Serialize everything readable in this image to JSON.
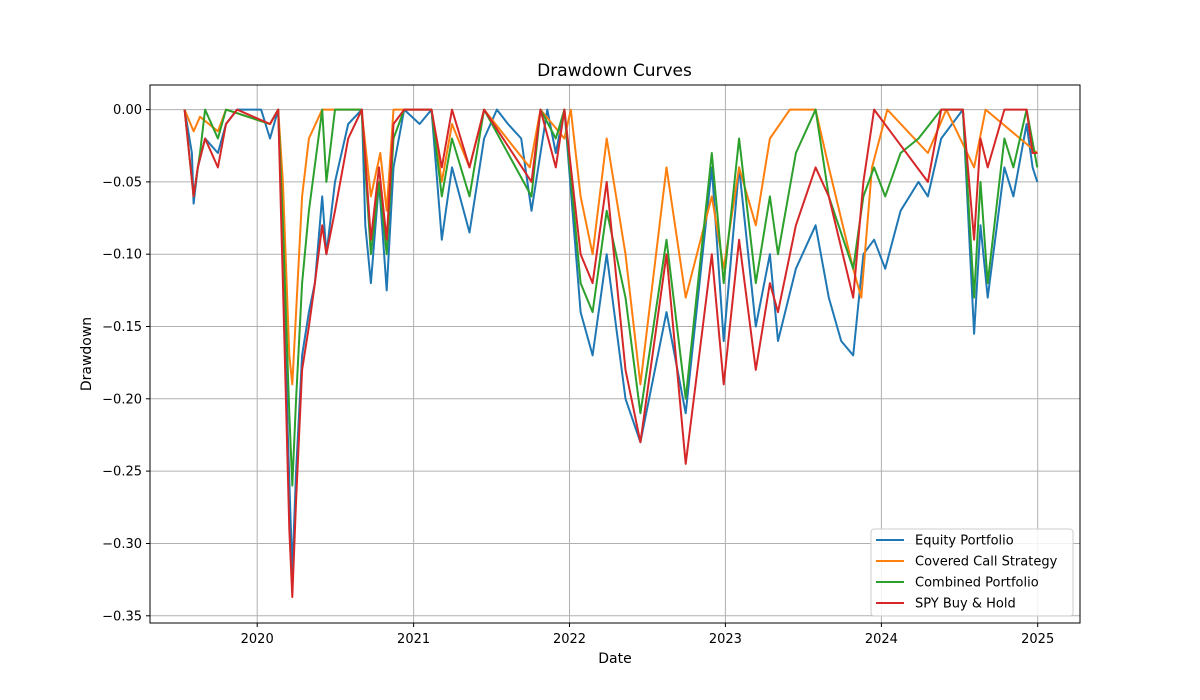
{
  "chart_data": {
    "type": "line",
    "title": "Drawdown Curves",
    "xlabel": "Date",
    "ylabel": "Drawdown",
    "xlim": [
      "2019-04-25",
      "2025-04-10"
    ],
    "ylim": [
      -0.355,
      0.017
    ],
    "x_ticks": [
      {
        "date": "2020-01-01",
        "label": "2020"
      },
      {
        "date": "2021-01-01",
        "label": "2021"
      },
      {
        "date": "2022-01-01",
        "label": "2022"
      },
      {
        "date": "2023-01-01",
        "label": "2023"
      },
      {
        "date": "2024-01-01",
        "label": "2024"
      },
      {
        "date": "2025-01-01",
        "label": "2025"
      }
    ],
    "y_ticks": [
      {
        "value": 0.0,
        "label": "0.00"
      },
      {
        "value": -0.05,
        "label": "−0.05"
      },
      {
        "value": -0.1,
        "label": "−0.10"
      },
      {
        "value": -0.15,
        "label": "−0.15"
      },
      {
        "value": -0.2,
        "label": "−0.20"
      },
      {
        "value": -0.25,
        "label": "−0.25"
      },
      {
        "value": -0.3,
        "label": "−0.30"
      },
      {
        "value": -0.35,
        "label": "−0.35"
      }
    ],
    "grid": true,
    "legend_position": "lower-right",
    "series": [
      {
        "name": "Equity Portfolio",
        "color": "#1f77b4",
        "points": [
          [
            "2019-07-15",
            0.0
          ],
          [
            "2019-08-01",
            -0.03
          ],
          [
            "2019-08-05",
            -0.065
          ],
          [
            "2019-08-15",
            -0.04
          ],
          [
            "2019-09-01",
            -0.02
          ],
          [
            "2019-10-01",
            -0.03
          ],
          [
            "2019-10-20",
            -0.01
          ],
          [
            "2019-11-15",
            0.0
          ],
          [
            "2020-01-10",
            0.0
          ],
          [
            "2020-01-31",
            -0.02
          ],
          [
            "2020-02-19",
            0.0
          ],
          [
            "2020-02-25",
            -0.05
          ],
          [
            "2020-03-05",
            -0.13
          ],
          [
            "2020-03-12",
            -0.22
          ],
          [
            "2020-03-23",
            -0.32
          ],
          [
            "2020-04-01",
            -0.25
          ],
          [
            "2020-04-15",
            -0.17
          ],
          [
            "2020-05-01",
            -0.14
          ],
          [
            "2020-05-15",
            -0.12
          ],
          [
            "2020-06-01",
            -0.06
          ],
          [
            "2020-06-11",
            -0.1
          ],
          [
            "2020-07-01",
            -0.05
          ],
          [
            "2020-08-01",
            -0.01
          ],
          [
            "2020-09-02",
            0.0
          ],
          [
            "2020-09-10",
            -0.08
          ],
          [
            "2020-09-23",
            -0.12
          ],
          [
            "2020-10-12",
            -0.05
          ],
          [
            "2020-10-30",
            -0.125
          ],
          [
            "2020-11-15",
            -0.04
          ],
          [
            "2020-12-10",
            0.0
          ],
          [
            "2021-01-15",
            -0.01
          ],
          [
            "2021-02-12",
            0.0
          ],
          [
            "2021-03-08",
            -0.09
          ],
          [
            "2021-04-01",
            -0.04
          ],
          [
            "2021-05-12",
            -0.085
          ],
          [
            "2021-06-15",
            -0.02
          ],
          [
            "2021-07-15",
            0.0
          ],
          [
            "2021-08-10",
            -0.01
          ],
          [
            "2021-09-10",
            -0.02
          ],
          [
            "2021-10-04",
            -0.07
          ],
          [
            "2021-11-10",
            0.0
          ],
          [
            "2021-11-30",
            -0.03
          ],
          [
            "2021-12-20",
            0.0
          ],
          [
            "2022-01-27",
            -0.14
          ],
          [
            "2022-02-24",
            -0.17
          ],
          [
            "2022-03-29",
            -0.1
          ],
          [
            "2022-05-12",
            -0.2
          ],
          [
            "2022-06-16",
            -0.23
          ],
          [
            "2022-08-16",
            -0.14
          ],
          [
            "2022-09-30",
            -0.21
          ],
          [
            "2022-11-30",
            -0.04
          ],
          [
            "2022-12-28",
            -0.16
          ],
          [
            "2023-02-02",
            -0.04
          ],
          [
            "2023-03-13",
            -0.15
          ],
          [
            "2023-04-15",
            -0.1
          ],
          [
            "2023-05-04",
            -0.16
          ],
          [
            "2023-06-15",
            -0.11
          ],
          [
            "2023-07-31",
            -0.08
          ],
          [
            "2023-08-31",
            -0.13
          ],
          [
            "2023-09-29",
            -0.16
          ],
          [
            "2023-10-27",
            -0.17
          ],
          [
            "2023-11-20",
            -0.1
          ],
          [
            "2023-12-15",
            -0.09
          ],
          [
            "2024-01-10",
            -0.11
          ],
          [
            "2024-02-15",
            -0.07
          ],
          [
            "2024-03-28",
            -0.05
          ],
          [
            "2024-04-19",
            -0.06
          ],
          [
            "2024-05-20",
            -0.02
          ],
          [
            "2024-07-10",
            0.0
          ],
          [
            "2024-08-05",
            -0.155
          ],
          [
            "2024-08-20",
            -0.08
          ],
          [
            "2024-09-06",
            -0.13
          ],
          [
            "2024-10-15",
            -0.04
          ],
          [
            "2024-11-05",
            -0.06
          ],
          [
            "2024-12-06",
            -0.01
          ],
          [
            "2024-12-20",
            -0.04
          ],
          [
            "2024-12-31",
            -0.05
          ]
        ]
      },
      {
        "name": "Covered Call Strategy",
        "color": "#ff7f0e",
        "points": [
          [
            "2019-07-15",
            0.0
          ],
          [
            "2019-08-05",
            -0.015
          ],
          [
            "2019-08-20",
            -0.005
          ],
          [
            "2019-10-01",
            -0.015
          ],
          [
            "2019-10-20",
            0.0
          ],
          [
            "2020-01-31",
            -0.01
          ],
          [
            "2020-02-19",
            0.0
          ],
          [
            "2020-03-01",
            -0.05
          ],
          [
            "2020-03-16",
            -0.17
          ],
          [
            "2020-03-23",
            -0.19
          ],
          [
            "2020-04-01",
            -0.14
          ],
          [
            "2020-04-15",
            -0.06
          ],
          [
            "2020-05-01",
            -0.02
          ],
          [
            "2020-06-01",
            0.0
          ],
          [
            "2020-09-01",
            0.0
          ],
          [
            "2020-09-23",
            -0.06
          ],
          [
            "2020-10-15",
            -0.03
          ],
          [
            "2020-10-30",
            -0.07
          ],
          [
            "2020-11-15",
            0.0
          ],
          [
            "2021-02-12",
            0.0
          ],
          [
            "2021-03-08",
            -0.05
          ],
          [
            "2021-04-01",
            -0.01
          ],
          [
            "2021-05-12",
            -0.04
          ],
          [
            "2021-06-15",
            0.0
          ],
          [
            "2021-09-30",
            -0.04
          ],
          [
            "2021-10-25",
            0.0
          ],
          [
            "2021-12-20",
            -0.02
          ],
          [
            "2022-01-04",
            0.0
          ],
          [
            "2022-01-27",
            -0.06
          ],
          [
            "2022-02-24",
            -0.1
          ],
          [
            "2022-03-29",
            -0.02
          ],
          [
            "2022-05-12",
            -0.1
          ],
          [
            "2022-06-16",
            -0.19
          ],
          [
            "2022-08-16",
            -0.04
          ],
          [
            "2022-09-30",
            -0.13
          ],
          [
            "2022-11-30",
            -0.06
          ],
          [
            "2022-12-28",
            -0.11
          ],
          [
            "2023-02-02",
            -0.04
          ],
          [
            "2023-03-13",
            -0.08
          ],
          [
            "2023-04-15",
            -0.02
          ],
          [
            "2023-06-01",
            0.0
          ],
          [
            "2023-07-31",
            0.0
          ],
          [
            "2023-08-31",
            -0.04
          ],
          [
            "2023-10-27",
            -0.11
          ],
          [
            "2023-11-15",
            -0.13
          ],
          [
            "2023-12-10",
            -0.04
          ],
          [
            "2024-01-15",
            0.0
          ],
          [
            "2024-04-19",
            -0.03
          ],
          [
            "2024-06-01",
            0.0
          ],
          [
            "2024-08-05",
            -0.04
          ],
          [
            "2024-09-01",
            0.0
          ],
          [
            "2024-12-31",
            -0.03
          ]
        ]
      },
      {
        "name": "Combined Portfolio",
        "color": "#2ca02c",
        "points": [
          [
            "2019-07-15",
            0.0
          ],
          [
            "2019-08-05",
            -0.06
          ],
          [
            "2019-08-20",
            -0.03
          ],
          [
            "2019-09-01",
            0.0
          ],
          [
            "2019-10-01",
            -0.02
          ],
          [
            "2019-10-20",
            0.0
          ],
          [
            "2020-01-31",
            -0.01
          ],
          [
            "2020-02-19",
            0.0
          ],
          [
            "2020-03-01",
            -0.08
          ],
          [
            "2020-03-16",
            -0.21
          ],
          [
            "2020-03-23",
            -0.26
          ],
          [
            "2020-04-01",
            -0.2
          ],
          [
            "2020-04-15",
            -0.12
          ],
          [
            "2020-05-01",
            -0.07
          ],
          [
            "2020-06-01",
            0.0
          ],
          [
            "2020-06-11",
            -0.05
          ],
          [
            "2020-07-01",
            0.0
          ],
          [
            "2020-09-01",
            0.0
          ],
          [
            "2020-09-23",
            -0.1
          ],
          [
            "2020-10-12",
            -0.05
          ],
          [
            "2020-10-30",
            -0.1
          ],
          [
            "2020-11-15",
            -0.02
          ],
          [
            "2020-12-10",
            0.0
          ],
          [
            "2021-02-12",
            0.0
          ],
          [
            "2021-03-08",
            -0.06
          ],
          [
            "2021-04-01",
            -0.02
          ],
          [
            "2021-05-12",
            -0.06
          ],
          [
            "2021-06-15",
            0.0
          ],
          [
            "2021-10-04",
            -0.06
          ],
          [
            "2021-10-25",
            0.0
          ],
          [
            "2021-11-30",
            -0.02
          ],
          [
            "2021-12-20",
            0.0
          ],
          [
            "2022-01-27",
            -0.12
          ],
          [
            "2022-02-24",
            -0.14
          ],
          [
            "2022-03-29",
            -0.07
          ],
          [
            "2022-05-12",
            -0.13
          ],
          [
            "2022-06-16",
            -0.21
          ],
          [
            "2022-08-16",
            -0.09
          ],
          [
            "2022-09-30",
            -0.2
          ],
          [
            "2022-11-30",
            -0.03
          ],
          [
            "2022-12-28",
            -0.12
          ],
          [
            "2023-02-02",
            -0.02
          ],
          [
            "2023-03-13",
            -0.12
          ],
          [
            "2023-04-15",
            -0.06
          ],
          [
            "2023-05-04",
            -0.1
          ],
          [
            "2023-06-15",
            -0.03
          ],
          [
            "2023-07-31",
            0.0
          ],
          [
            "2023-08-31",
            -0.06
          ],
          [
            "2023-10-27",
            -0.11
          ],
          [
            "2023-11-20",
            -0.06
          ],
          [
            "2023-12-15",
            -0.04
          ],
          [
            "2024-01-10",
            -0.06
          ],
          [
            "2024-02-15",
            -0.03
          ],
          [
            "2024-03-28",
            -0.02
          ],
          [
            "2024-05-20",
            0.0
          ],
          [
            "2024-07-10",
            0.0
          ],
          [
            "2024-08-05",
            -0.13
          ],
          [
            "2024-08-20",
            -0.05
          ],
          [
            "2024-09-06",
            -0.12
          ],
          [
            "2024-10-15",
            -0.02
          ],
          [
            "2024-11-05",
            -0.04
          ],
          [
            "2024-12-06",
            0.0
          ],
          [
            "2024-12-31",
            -0.04
          ]
        ]
      },
      {
        "name": "SPY Buy & Hold",
        "color": "#d62728",
        "points": [
          [
            "2019-07-15",
            0.0
          ],
          [
            "2019-08-05",
            -0.06
          ],
          [
            "2019-08-15",
            -0.04
          ],
          [
            "2019-09-01",
            -0.02
          ],
          [
            "2019-10-01",
            -0.04
          ],
          [
            "2019-10-20",
            -0.01
          ],
          [
            "2019-11-15",
            0.0
          ],
          [
            "2020-01-31",
            -0.01
          ],
          [
            "2020-02-19",
            0.0
          ],
          [
            "2020-03-01",
            -0.12
          ],
          [
            "2020-03-16",
            -0.29
          ],
          [
            "2020-03-23",
            -0.337
          ],
          [
            "2020-04-01",
            -0.27
          ],
          [
            "2020-04-15",
            -0.18
          ],
          [
            "2020-05-01",
            -0.15
          ],
          [
            "2020-05-15",
            -0.12
          ],
          [
            "2020-06-01",
            -0.08
          ],
          [
            "2020-06-11",
            -0.1
          ],
          [
            "2020-07-01",
            -0.07
          ],
          [
            "2020-08-01",
            -0.02
          ],
          [
            "2020-09-02",
            0.0
          ],
          [
            "2020-09-23",
            -0.09
          ],
          [
            "2020-10-12",
            -0.04
          ],
          [
            "2020-10-30",
            -0.09
          ],
          [
            "2020-11-15",
            -0.01
          ],
          [
            "2020-12-10",
            0.0
          ],
          [
            "2021-02-12",
            0.0
          ],
          [
            "2021-03-08",
            -0.04
          ],
          [
            "2021-04-01",
            0.0
          ],
          [
            "2021-05-12",
            -0.04
          ],
          [
            "2021-06-15",
            0.0
          ],
          [
            "2021-10-04",
            -0.05
          ],
          [
            "2021-10-25",
            0.0
          ],
          [
            "2021-11-30",
            -0.04
          ],
          [
            "2021-12-20",
            0.0
          ],
          [
            "2022-01-27",
            -0.1
          ],
          [
            "2022-02-24",
            -0.12
          ],
          [
            "2022-03-29",
            -0.05
          ],
          [
            "2022-05-12",
            -0.18
          ],
          [
            "2022-06-16",
            -0.23
          ],
          [
            "2022-08-16",
            -0.1
          ],
          [
            "2022-09-30",
            -0.245
          ],
          [
            "2022-11-30",
            -0.1
          ],
          [
            "2022-12-28",
            -0.19
          ],
          [
            "2023-02-02",
            -0.09
          ],
          [
            "2023-03-13",
            -0.18
          ],
          [
            "2023-04-15",
            -0.12
          ],
          [
            "2023-05-04",
            -0.14
          ],
          [
            "2023-06-15",
            -0.08
          ],
          [
            "2023-07-31",
            -0.04
          ],
          [
            "2023-08-31",
            -0.06
          ],
          [
            "2023-10-27",
            -0.13
          ],
          [
            "2023-11-20",
            -0.05
          ],
          [
            "2023-12-15",
            0.0
          ],
          [
            "2024-04-19",
            -0.05
          ],
          [
            "2024-05-20",
            0.0
          ],
          [
            "2024-07-10",
            0.0
          ],
          [
            "2024-08-05",
            -0.09
          ],
          [
            "2024-08-20",
            -0.02
          ],
          [
            "2024-09-06",
            -0.04
          ],
          [
            "2024-10-15",
            0.0
          ],
          [
            "2024-12-06",
            0.0
          ],
          [
            "2024-12-20",
            -0.03
          ],
          [
            "2024-12-31",
            -0.03
          ]
        ]
      }
    ]
  }
}
